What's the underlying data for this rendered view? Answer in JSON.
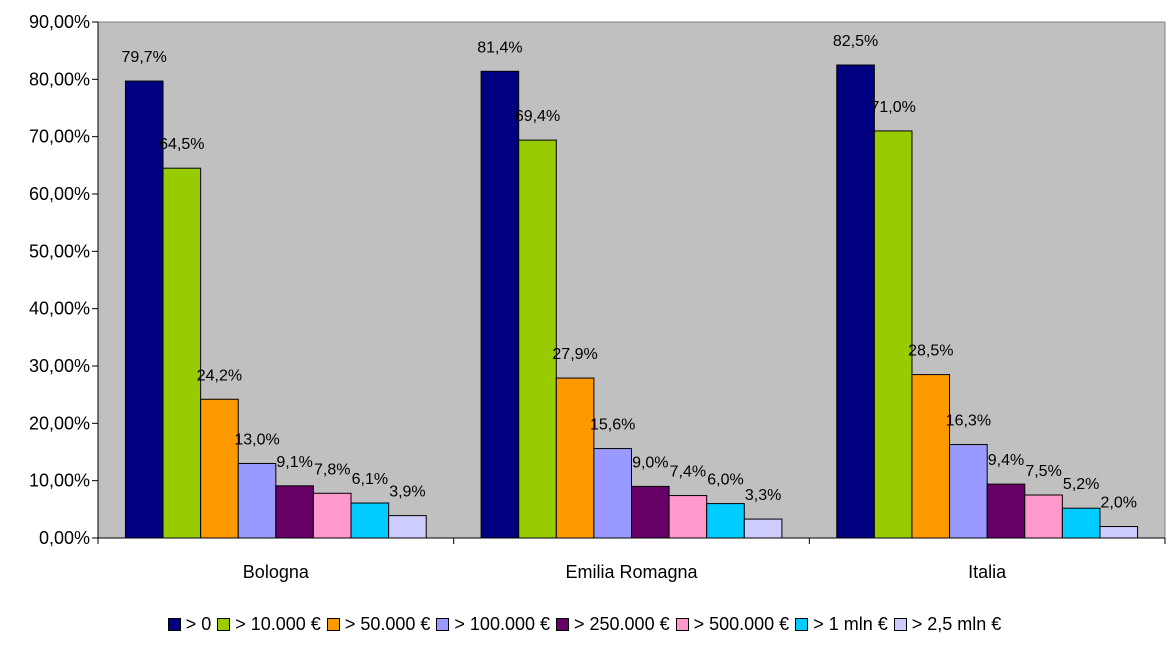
{
  "chart_data": {
    "type": "bar",
    "categories": [
      "Bologna",
      "Emilia Romagna",
      "Italia"
    ],
    "y_ticks": [
      "0,00%",
      "10,00%",
      "20,00%",
      "30,00%",
      "40,00%",
      "50,00%",
      "60,00%",
      "70,00%",
      "80,00%",
      "90,00%"
    ],
    "ylim": [
      0,
      90
    ],
    "grid": false,
    "legend_position": "bottom",
    "plot_background": "#C0C0C0",
    "series": [
      {
        "name": "> 0",
        "color": "#000080",
        "values": [
          79.7,
          81.4,
          82.5
        ],
        "labels": [
          "79,7%",
          "81,4%",
          "82,5%"
        ]
      },
      {
        "name": "> 10.000 €",
        "color": "#99CC00",
        "values": [
          64.5,
          69.4,
          71.0
        ],
        "labels": [
          "64,5%",
          "69,4%",
          "71,0%"
        ]
      },
      {
        "name": "> 50.000 €",
        "color": "#FF9900",
        "values": [
          24.2,
          27.9,
          28.5
        ],
        "labels": [
          "24,2%",
          "27,9%",
          "28,5%"
        ]
      },
      {
        "name": "> 100.000 €",
        "color": "#9999FF",
        "values": [
          13.0,
          15.6,
          16.3
        ],
        "labels": [
          "13,0%",
          "15,6%",
          "16,3%"
        ]
      },
      {
        "name": "> 250.000 €",
        "color": "#660066",
        "values": [
          9.1,
          9.0,
          9.4
        ],
        "labels": [
          "9,1%",
          "9,0%",
          "9,4%"
        ]
      },
      {
        "name": "> 500.000 €",
        "color": "#FF99CC",
        "values": [
          7.8,
          7.4,
          7.5
        ],
        "labels": [
          "7,8%",
          "7,4%",
          "7,5%"
        ]
      },
      {
        "name": "> 1 mln €",
        "color": "#00CCFF",
        "values": [
          6.1,
          6.0,
          5.2
        ],
        "labels": [
          "6,1%",
          "6,0%",
          "5,2%"
        ]
      },
      {
        "name": "> 2,5 mln €",
        "color": "#CCCCFF",
        "values": [
          3.9,
          3.3,
          2.0
        ],
        "labels": [
          "3,9%",
          "3,3%",
          "2,0%"
        ]
      }
    ]
  }
}
